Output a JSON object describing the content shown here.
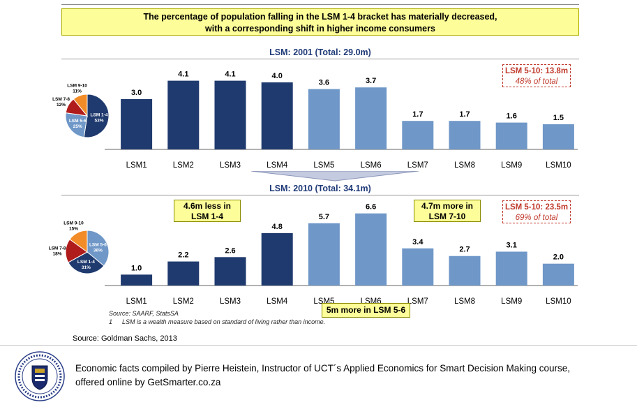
{
  "headline": {
    "line1": "The percentage of population falling in the LSM 1-4 bracket has materially decreased,",
    "line2": "with a corresponding shift in higher income consumers"
  },
  "chart_data": [
    {
      "type": "bar",
      "title": "LSM: 2001 (Total: 29.0m)",
      "categories": [
        "LSM1",
        "LSM2",
        "LSM3",
        "LSM4",
        "LSM5",
        "LSM6",
        "LSM7",
        "LSM8",
        "LSM9",
        "LSM10"
      ],
      "values": [
        3.0,
        4.1,
        4.1,
        4.0,
        3.6,
        3.7,
        1.7,
        1.7,
        1.6,
        1.5
      ],
      "value_labels": [
        "3.0",
        "4.1",
        "4.1",
        "4.0",
        "3.6",
        "3.7",
        "1.7",
        "1.7",
        "1.6",
        "1.5"
      ],
      "ylim": [
        0,
        4.5
      ],
      "colors": {
        "LSM 1-4": "#1f3a6e",
        "LSM 5-10": "#6f97c8"
      },
      "pie": [
        {
          "label": "LSM 1-4",
          "pct": "53%",
          "value": 53,
          "color": "#1f3a6e"
        },
        {
          "label": "LSM 5-6",
          "pct": "25%",
          "value": 25,
          "color": "#6f97c8"
        },
        {
          "label": "LSM 7-8",
          "pct": "12%",
          "value": 12,
          "color": "#b01c1c"
        },
        {
          "label": "LSM 9-10",
          "pct": "11%",
          "value": 11,
          "color": "#f28c28"
        }
      ],
      "summary": {
        "line1": "LSM 5-10: 13.8m",
        "line2": "48% of total"
      }
    },
    {
      "type": "bar",
      "title": "LSM: 2010 (Total: 34.1m)",
      "categories": [
        "LSM1",
        "LSM2",
        "LSM3",
        "LSM4",
        "LSM5",
        "LSM6",
        "LSM7",
        "LSM8",
        "LSM9",
        "LSM10"
      ],
      "values": [
        1.0,
        2.2,
        2.6,
        4.8,
        5.7,
        6.6,
        3.4,
        2.7,
        3.1,
        2.0
      ],
      "value_labels": [
        "1.0",
        "2.2",
        "2.6",
        "4.8",
        "5.7",
        "6.6",
        "3.4",
        "2.7",
        "3.1",
        "2.0"
      ],
      "ylim": [
        0,
        6.9
      ],
      "colors": {
        "LSM 1-4": "#1f3a6e",
        "LSM 5-10": "#6f97c8"
      },
      "pie": [
        {
          "label": "LSM 5-6",
          "pct": "36%",
          "value": 36,
          "color": "#6f97c8"
        },
        {
          "label": "LSM 1-4",
          "pct": "31%",
          "value": 31,
          "color": "#1f3a6e"
        },
        {
          "label": "LSM 7-8",
          "pct": "18%",
          "value": 18,
          "color": "#b01c1c"
        },
        {
          "label": "LSM 9-10",
          "pct": "15%",
          "value": 15,
          "color": "#f28c28"
        }
      ],
      "summary": {
        "line1": "LSM 5-10: 23.5m",
        "line2": "69% of total"
      },
      "annotations": [
        {
          "line1": "4.6m less in",
          "line2": "LSM 1-4"
        },
        {
          "line1": "4.7m more in",
          "line2": "LSM 7-10"
        },
        {
          "line1": "5m more in LSM 5-6"
        }
      ]
    }
  ],
  "notes": {
    "source": "Source:   SAARF, StatsSA",
    "footnote_marker": "1",
    "footnote": "LSM is a wealth measure based on standard of living rather than income."
  },
  "source_line": "Source: Goldman Sachs, 2013",
  "footer": {
    "line1": "Economic facts compiled by Pierre Heistein, Instructor of UCT´s Applied Economics for Smart Decision Making course,",
    "line2": "offered online by GetSmarter.co.za"
  }
}
